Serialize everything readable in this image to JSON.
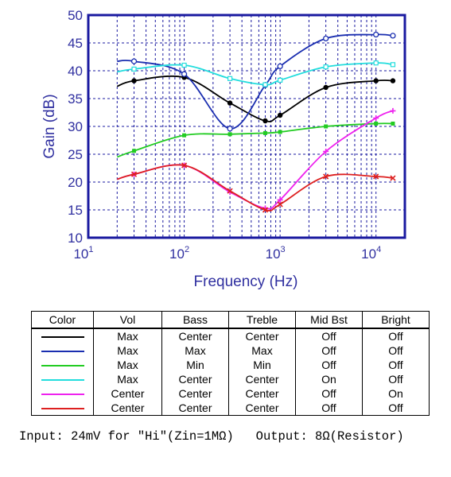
{
  "chart_data": {
    "type": "line",
    "title": "",
    "xlabel": "Frequency (Hz)",
    "ylabel": "Gain (dB)",
    "xscale": "log",
    "xlim": [
      10,
      20000
    ],
    "ylim": [
      10,
      50
    ],
    "grid": true,
    "x_ticks": [
      {
        "base": "10",
        "exp": "1"
      },
      {
        "base": "10",
        "exp": "2"
      },
      {
        "base": "10",
        "exp": "3"
      },
      {
        "base": "10",
        "exp": "4"
      }
    ],
    "y_ticks": [
      "10",
      "15",
      "20",
      "25",
      "30",
      "35",
      "40",
      "45",
      "50"
    ],
    "series": [
      {
        "color": "#000000",
        "marker": "filled-circle",
        "x": [
          20,
          30,
          100,
          300,
          700,
          1000,
          3000,
          10000,
          15000
        ],
        "y": [
          37.2,
          38.2,
          38.8,
          34.2,
          31,
          32,
          37,
          38.2,
          38.2
        ]
      },
      {
        "color": "#1a2eb0",
        "marker": "open-circle",
        "x": [
          20,
          30,
          100,
          300,
          700,
          1000,
          3000,
          10000,
          15000
        ],
        "y": [
          41.7,
          41.7,
          39.4,
          29.6,
          37.4,
          40.8,
          45.8,
          46.5,
          46.3
        ]
      },
      {
        "color": "#22cc22",
        "marker": "square",
        "x": [
          20,
          30,
          100,
          300,
          700,
          1000,
          3000,
          10000,
          15000
        ],
        "y": [
          24.5,
          25.6,
          28.4,
          28.6,
          28.8,
          29,
          30,
          30.5,
          30.5
        ]
      },
      {
        "color": "#22dddd",
        "marker": "open-square",
        "x": [
          20,
          30,
          100,
          300,
          700,
          1000,
          3000,
          10000,
          15000
        ],
        "y": [
          39.8,
          40.3,
          41,
          38.6,
          37.5,
          38.3,
          40.7,
          41.4,
          41.1
        ]
      },
      {
        "color": "#ee22ee",
        "marker": "plus",
        "x": [
          20,
          30,
          100,
          300,
          700,
          1000,
          3000,
          10000,
          15000
        ],
        "y": [
          20.5,
          21.4,
          23,
          18.2,
          15.3,
          16.8,
          25.5,
          31.5,
          32.8
        ]
      },
      {
        "color": "#dd2020",
        "marker": "cross",
        "x": [
          20,
          30,
          100,
          300,
          700,
          1000,
          3000,
          10000,
          15000
        ],
        "y": [
          20.5,
          21.4,
          23,
          18.4,
          15,
          16,
          21,
          21,
          20.7
        ]
      }
    ]
  },
  "legend_table": {
    "headers": [
      "Color",
      "Vol",
      "Bass",
      "Treble",
      "Mid Bst",
      "Bright"
    ],
    "rows": [
      {
        "color": "#000000",
        "vol": "Max",
        "bass": "Center",
        "treble": "Center",
        "mid_bst": "Off",
        "bright": "Off"
      },
      {
        "color": "#1a2eb0",
        "vol": "Max",
        "bass": "Max",
        "treble": "Max",
        "mid_bst": "Off",
        "bright": "Off"
      },
      {
        "color": "#22cc22",
        "vol": "Max",
        "bass": "Min",
        "treble": "Min",
        "mid_bst": "Off",
        "bright": "Off"
      },
      {
        "color": "#22dddd",
        "vol": "Max",
        "bass": "Center",
        "treble": "Center",
        "mid_bst": "On",
        "bright": "Off"
      },
      {
        "color": "#ee22ee",
        "vol": "Center",
        "bass": "Center",
        "treble": "Center",
        "mid_bst": "Off",
        "bright": "On"
      },
      {
        "color": "#dd2020",
        "vol": "Center",
        "bass": "Center",
        "treble": "Center",
        "mid_bst": "Off",
        "bright": "Off"
      }
    ]
  },
  "footnote": {
    "text": "Input: 24mV for \"Hi\"(Zin=1MΩ)   Output: 8Ω(Resistor)"
  }
}
